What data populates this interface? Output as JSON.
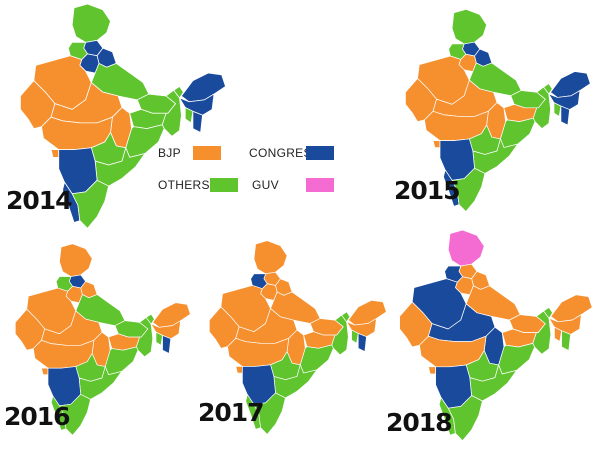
{
  "colors": {
    "bjp": "#f6902f",
    "others": "#5fc42e",
    "congress": "#1a4a9c",
    "guv": "#f46bd2"
  },
  "legend": {
    "bjp": "BJP",
    "others": "OTHERS",
    "congress": "CONGRESS",
    "guv": "GUV"
  },
  "maps": [
    {
      "year": "2014",
      "regions": {
        "jk": "others",
        "hp": "congress",
        "pb": "others",
        "uk": "congress",
        "hr": "congress",
        "rj": "bjp",
        "up": "others",
        "gj": "bjp",
        "mp": "bjp",
        "cg": "bjp",
        "bihar": "others",
        "jh": "others",
        "wb": "others",
        "odisha": "others",
        "mh": "bjp",
        "tel": "others",
        "ap": "others",
        "ka": "congress",
        "goa": "bjp",
        "kerala": "congress",
        "tn": "others",
        "sikkim": "others",
        "ne": "congress",
        "assam": "congress",
        "tripura": "others",
        "mizo": "congress"
      }
    },
    {
      "year": "2015",
      "regions": {
        "jk": "others",
        "hp": "congress",
        "pb": "others",
        "uk": "congress",
        "hr": "bjp",
        "rj": "bjp",
        "up": "others",
        "gj": "bjp",
        "mp": "bjp",
        "cg": "bjp",
        "bihar": "others",
        "jh": "bjp",
        "wb": "others",
        "odisha": "others",
        "mh": "bjp",
        "tel": "others",
        "ap": "others",
        "ka": "congress",
        "goa": "bjp",
        "kerala": "congress",
        "tn": "others",
        "sikkim": "others",
        "ne": "congress",
        "assam": "congress",
        "tripura": "others",
        "mizo": "congress"
      }
    },
    {
      "year": "2016",
      "regions": {
        "jk": "bjp",
        "hp": "congress",
        "pb": "others",
        "uk": "bjp",
        "hr": "bjp",
        "rj": "bjp",
        "up": "others",
        "gj": "bjp",
        "mp": "bjp",
        "cg": "bjp",
        "bihar": "others",
        "jh": "bjp",
        "wb": "others",
        "odisha": "others",
        "mh": "bjp",
        "tel": "others",
        "ap": "others",
        "ka": "congress",
        "goa": "bjp",
        "kerala": "others",
        "tn": "others",
        "sikkim": "others",
        "ne": "bjp",
        "assam": "bjp",
        "tripura": "others",
        "mizo": "congress"
      }
    },
    {
      "year": "2017",
      "regions": {
        "jk": "bjp",
        "hp": "bjp",
        "pb": "congress",
        "uk": "bjp",
        "hr": "bjp",
        "rj": "bjp",
        "up": "bjp",
        "gj": "bjp",
        "mp": "bjp",
        "cg": "bjp",
        "bihar": "bjp",
        "jh": "bjp",
        "wb": "others",
        "odisha": "others",
        "mh": "bjp",
        "tel": "others",
        "ap": "others",
        "ka": "congress",
        "goa": "bjp",
        "kerala": "others",
        "tn": "others",
        "sikkim": "others",
        "ne": "bjp",
        "assam": "bjp",
        "tripura": "others",
        "mizo": "congress"
      }
    },
    {
      "year": "2018",
      "regions": {
        "jk": "guv",
        "hp": "bjp",
        "pb": "congress",
        "uk": "bjp",
        "hr": "bjp",
        "rj": "congress",
        "up": "bjp",
        "gj": "bjp",
        "mp": "congress",
        "cg": "congress",
        "bihar": "bjp",
        "jh": "bjp",
        "wb": "others",
        "odisha": "others",
        "mh": "bjp",
        "tel": "others",
        "ap": "others",
        "ka": "congress",
        "goa": "bjp",
        "kerala": "others",
        "tn": "others",
        "sikkim": "others",
        "ne": "bjp",
        "assam": "bjp",
        "tripura": "bjp",
        "mizo": "others"
      }
    }
  ]
}
